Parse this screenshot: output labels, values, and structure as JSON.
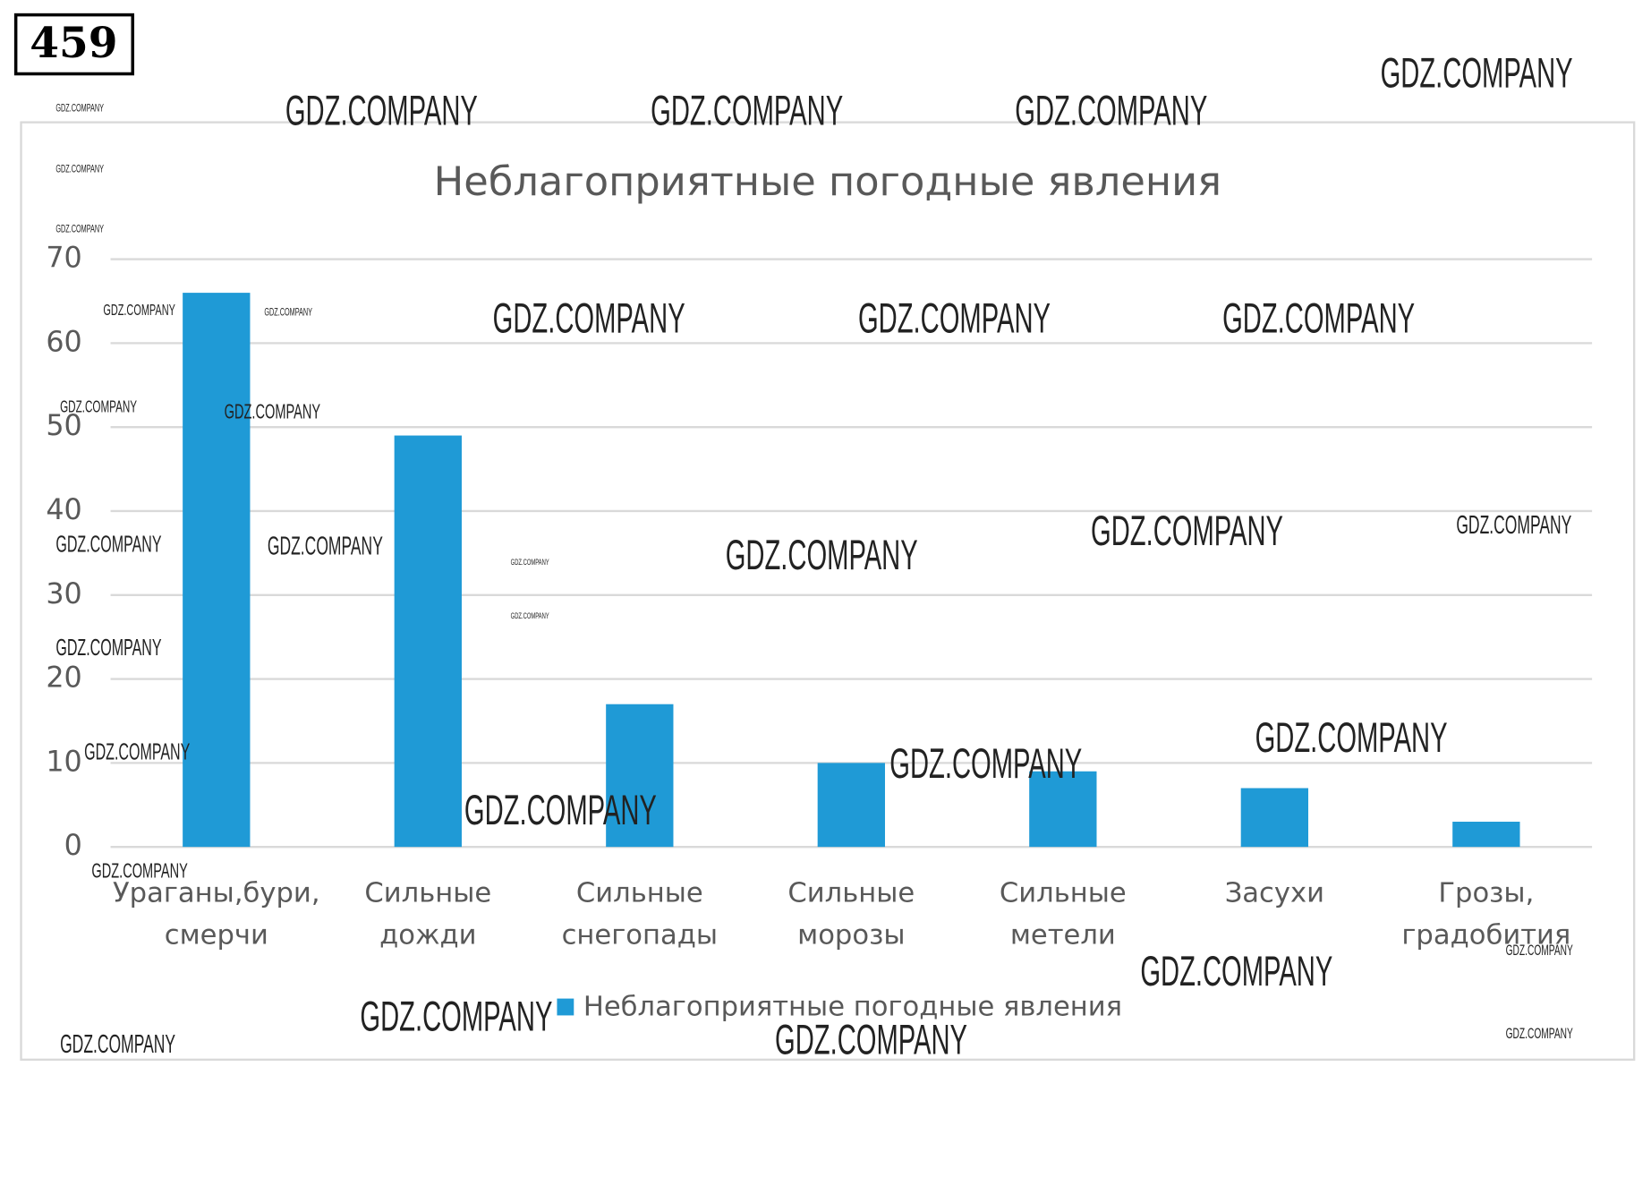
{
  "header": {
    "number": "459"
  },
  "chart_data": {
    "type": "bar",
    "title": "Неблагоприятные погодные явления",
    "categories": [
      "Ураганы,бури, смерчи",
      "Сильные дожди",
      "Сильные снегопады",
      "Сильные морозы",
      "Сильные метели",
      "Засухи",
      "Грозы, градобития"
    ],
    "series": [
      {
        "name": "Неблагоприятные погодные явления",
        "color": "#1f9ad6",
        "values": [
          66,
          49,
          17,
          10,
          9,
          7,
          3
        ]
      }
    ],
    "ylim": [
      0,
      70
    ],
    "yticks": [
      0,
      10,
      20,
      30,
      40,
      50,
      60,
      70
    ],
    "grid": true,
    "legend": "bottom"
  },
  "watermarks": [
    "GDZ.COMPANY",
    "GDZ.COMPANY",
    "GDZ.COMPANY",
    "GDZ.COMPANY",
    "GDZ.COMPANY",
    "GDZ.COMPANY",
    "GDZ.COMPANY",
    "GDZ.COMPANY",
    "GDZ.COMPANY",
    "GDZ.COMPANY",
    "GDZ.COMPANY",
    "GDZ.COMPANY",
    "GDZ.COMPANY",
    "GDZ.COMPANY",
    "GDZ.COMPANY",
    "GDZ.COMPANY",
    "GDZ.COMPANY",
    "GDZ.COMPANY",
    "GDZ.COMPANY",
    "GDZ.COMPANY",
    "GDZ.COMPANY",
    "GDZ.COMPANY",
    "GDZ.COMPANY",
    "GDZ.COMPANY",
    "GDZ.COMPANY",
    "GDZ.COMPANY",
    "GDZ.COMPANY",
    "GDZ.COMPANY",
    "GDZ.COMPANY",
    "GDZ.COMPANY",
    "GDZ.COMPANY",
    "GDZ.COMPANY",
    "GDZ.COMPANY"
  ]
}
